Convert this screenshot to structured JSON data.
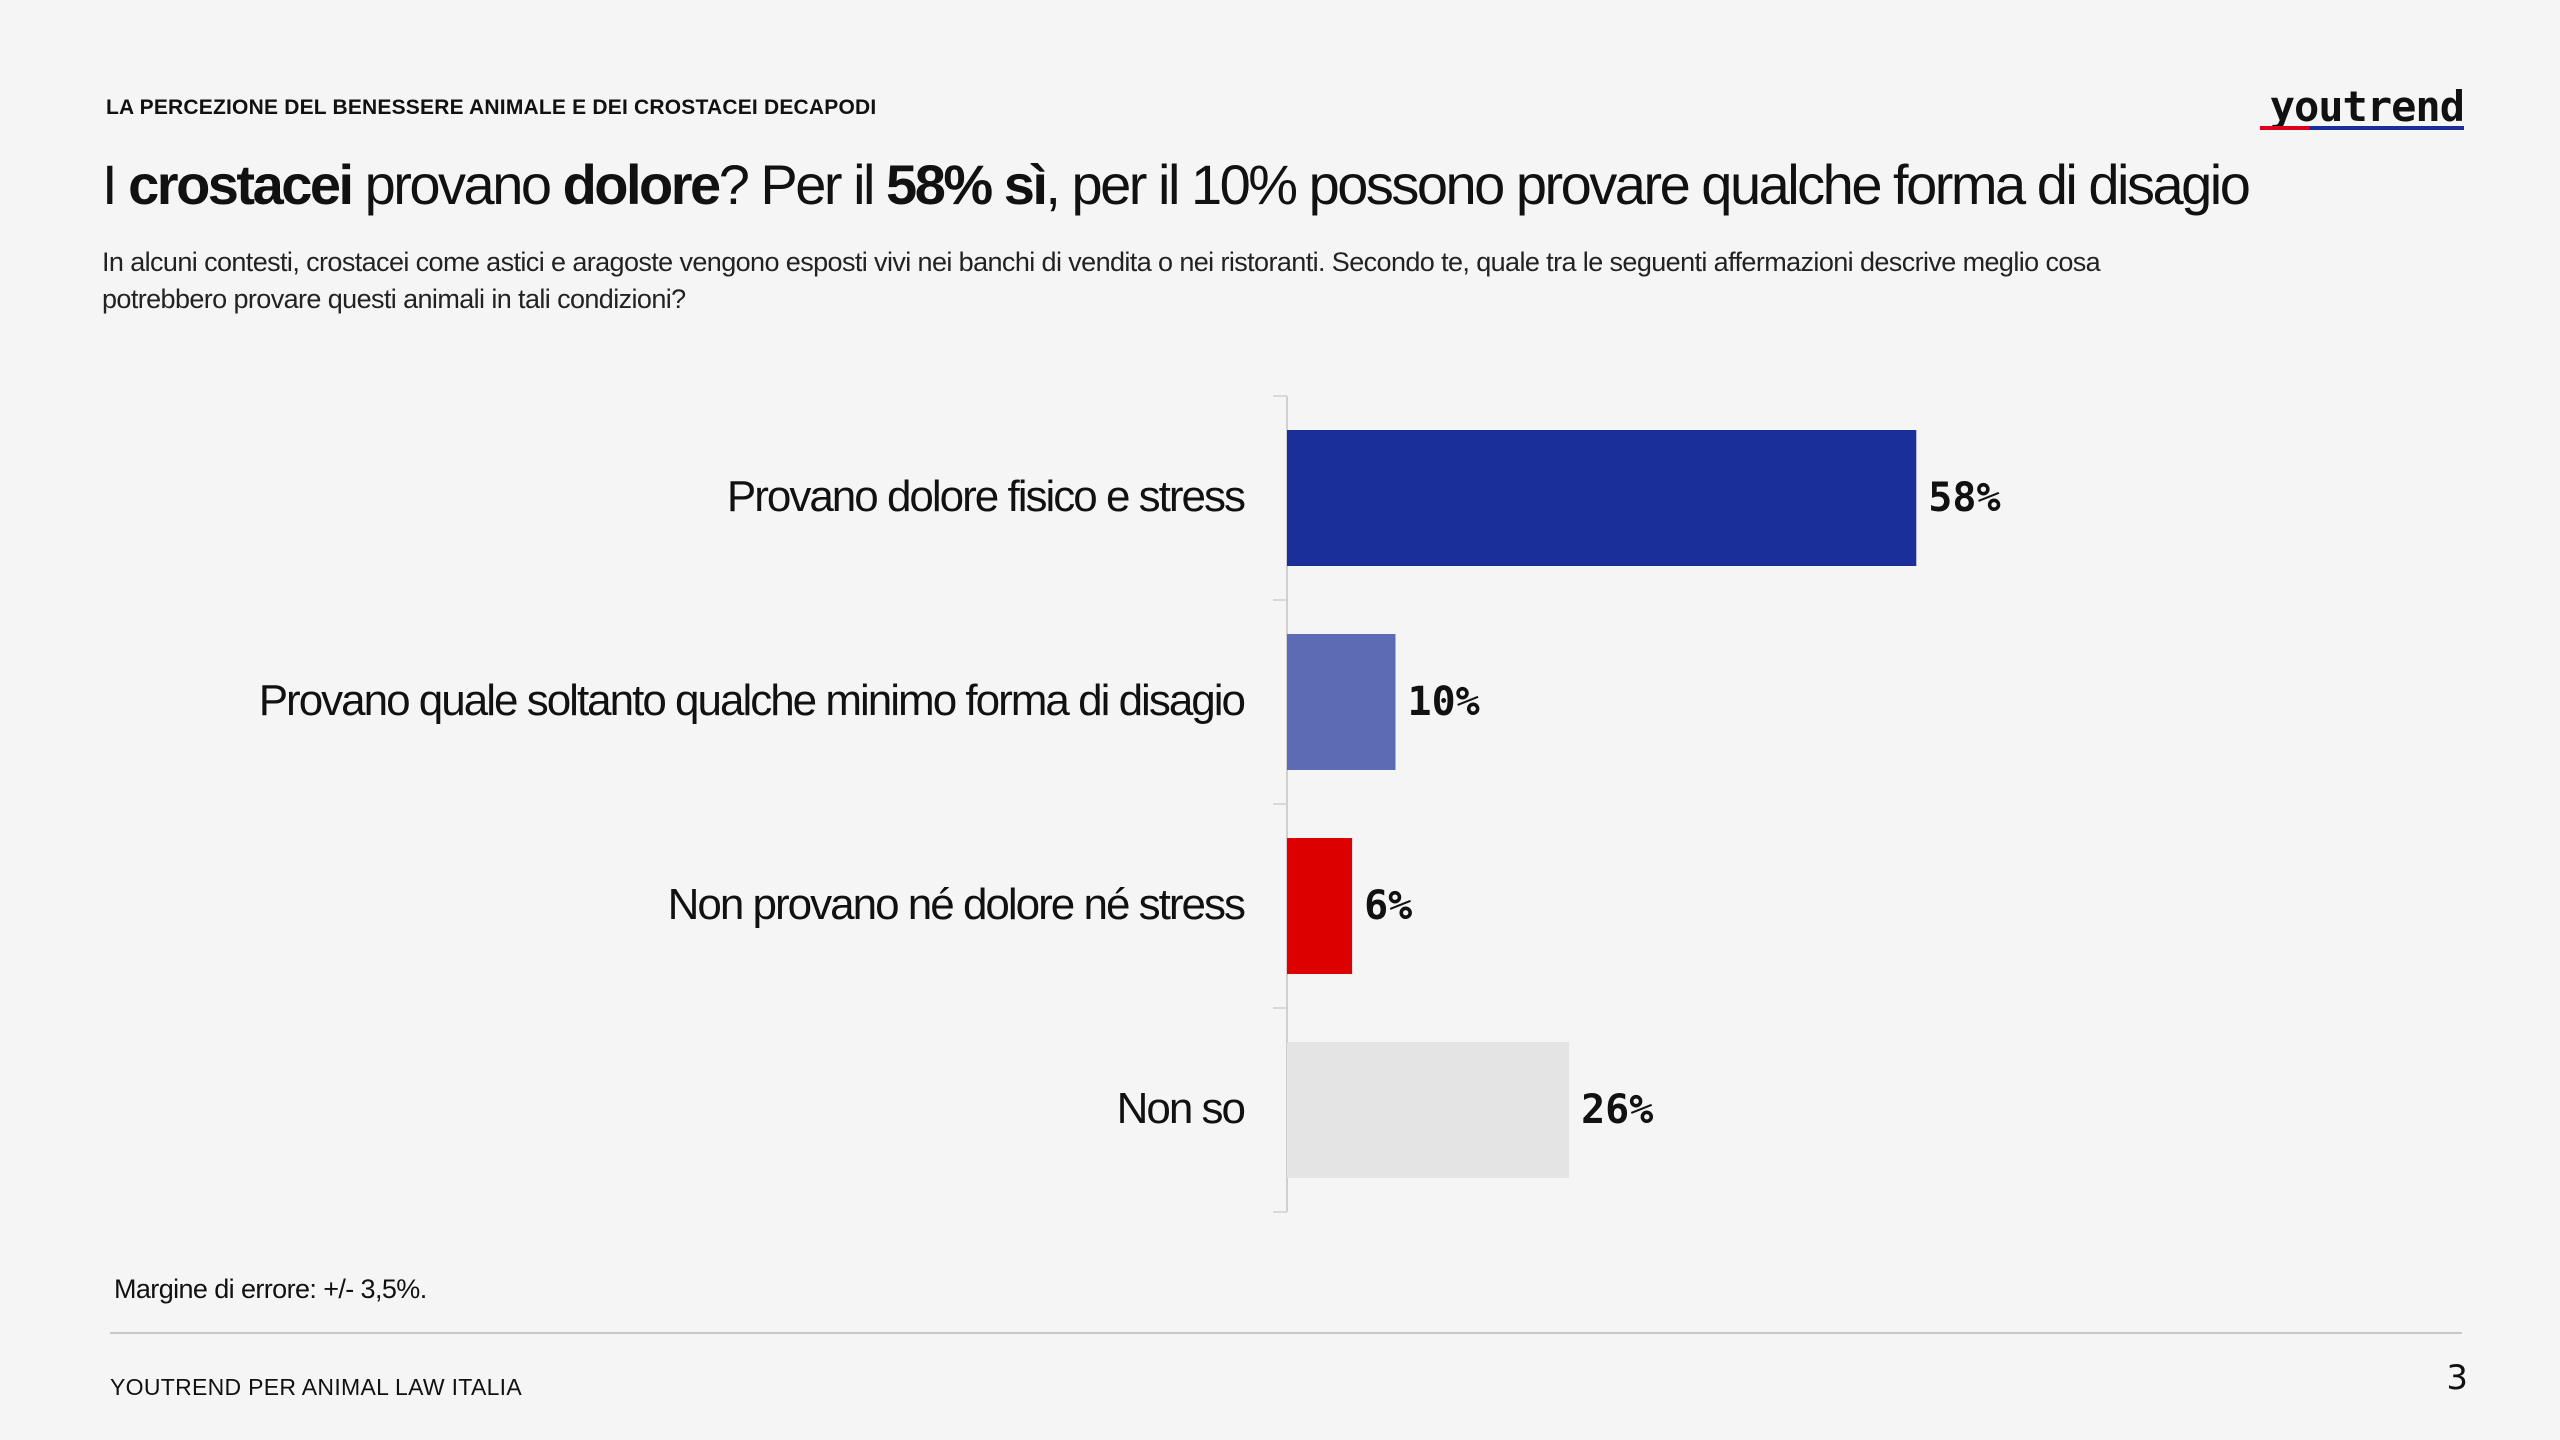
{
  "header": {
    "kicker": "LA PERCEZIONE DEL BENESSERE ANIMALE E DEI CROSTACEI DECAPODI",
    "logo_text": "youtrend",
    "headline": {
      "part1": "I ",
      "b1": "crostacei",
      "part2": " provano ",
      "b2": "dolore",
      "part3": "? Per il ",
      "b3": "58% sì",
      "part4": ", per il 10% possono provare qualche forma di disagio"
    },
    "subtitle": "In alcuni contesti, crostacei come astici e aragoste vengono esposti vivi nei banchi di vendita o nei ristoranti. Secondo te, quale tra le seguenti affermazioni descrive meglio cosa potrebbero provare questi animali in tali condizioni?"
  },
  "chart_data": {
    "type": "bar",
    "orientation": "horizontal",
    "categories": [
      "Provano dolore fisico e stress",
      "Provano quale soltanto qualche minimo forma di disagio",
      "Non provano né dolore né stress",
      "Non so"
    ],
    "values": [
      58,
      10,
      6,
      26
    ],
    "value_labels": [
      "58%",
      "10%",
      "6%",
      "26%"
    ],
    "colors": [
      "#1b2f9b",
      "#5d6bb5",
      "#dd0000",
      "#e4e4e4"
    ],
    "xlim": [
      0,
      100
    ]
  },
  "footer": {
    "note": "Margine di errore: +/- 3,5%.",
    "source": "YOUTREND PER ANIMAL LAW ITALIA",
    "page": "3"
  }
}
